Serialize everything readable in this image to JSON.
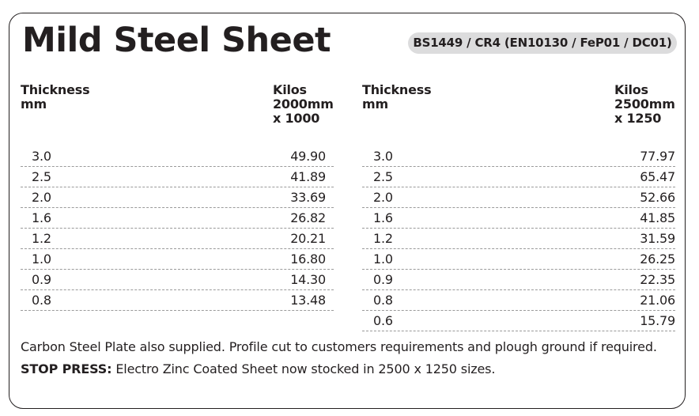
{
  "title": "Mild Steel Sheet",
  "spec": "BS1449 / CR4 (EN10130 / FeP01 / DC01)",
  "tables": [
    {
      "header_thickness": "Thickness\nmm",
      "header_kilos": "Kilos\n2000mm\nx 1000",
      "rows": [
        {
          "thickness": "3.0",
          "kilos": "49.90"
        },
        {
          "thickness": "2.5",
          "kilos": "41.89"
        },
        {
          "thickness": "2.0",
          "kilos": "33.69"
        },
        {
          "thickness": "1.6",
          "kilos": "26.82"
        },
        {
          "thickness": "1.2",
          "kilos": "20.21"
        },
        {
          "thickness": "1.0",
          "kilos": "16.80"
        },
        {
          "thickness": "0.9",
          "kilos": "14.30"
        },
        {
          "thickness": "0.8",
          "kilos": "13.48"
        }
      ]
    },
    {
      "header_thickness": "Thickness\nmm",
      "header_kilos": "Kilos\n2500mm\nx 1250",
      "rows": [
        {
          "thickness": "3.0",
          "kilos": "77.97"
        },
        {
          "thickness": "2.5",
          "kilos": "65.47"
        },
        {
          "thickness": "2.0",
          "kilos": "52.66"
        },
        {
          "thickness": "1.6",
          "kilos": "41.85"
        },
        {
          "thickness": "1.2",
          "kilos": "31.59"
        },
        {
          "thickness": "1.0",
          "kilos": "26.25"
        },
        {
          "thickness": "0.9",
          "kilos": "22.35"
        },
        {
          "thickness": "0.8",
          "kilos": "21.06"
        },
        {
          "thickness": "0.6",
          "kilos": "15.79"
        }
      ]
    }
  ],
  "notes": {
    "line1": "Carbon Steel Plate also supplied. Profile cut to customers requirements and plough ground if required.",
    "stop_press_label": "STOP PRESS:",
    "stop_press_text": " Electro Zinc Coated Sheet now stocked in 2500 x 1250 sizes."
  }
}
